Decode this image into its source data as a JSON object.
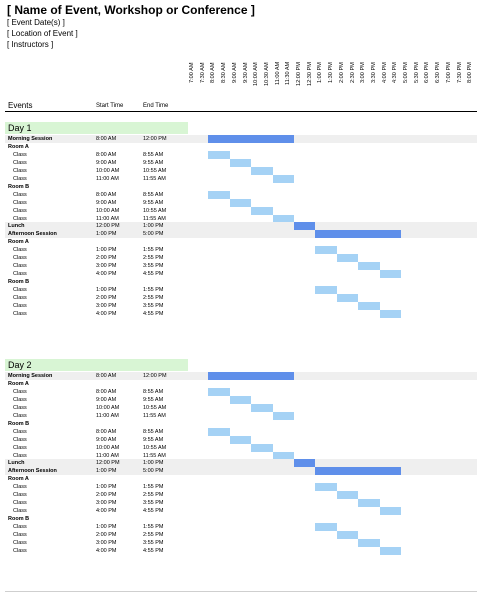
{
  "header": {
    "title": "[ Name of Event, Workshop or Conference ]",
    "dates": "[ Event Date(s) ]",
    "location": "[ Location of Event ]",
    "instructors": "[ Instructors ]"
  },
  "columns": {
    "events": "Events",
    "start": "Start Time",
    "end": "End Time"
  },
  "times": [
    "7:00 AM",
    "7:30 AM",
    "8:00 AM",
    "8:30 AM",
    "9:00 AM",
    "9:30 AM",
    "10:00 AM",
    "10:30 AM",
    "11:00 AM",
    "11:30 AM",
    "12:00 PM",
    "12:30 PM",
    "1:00 PM",
    "1:30 PM",
    "2:00 PM",
    "2:30 PM",
    "3:00 PM",
    "3:30 PM",
    "4:00 PM",
    "4:30 PM",
    "5:00 PM",
    "5:30 PM",
    "6:00 PM",
    "6:30 PM",
    "7:00 PM",
    "7:30 PM",
    "8:00 PM"
  ],
  "colors": {
    "class_bar": "#a5d2f5",
    "session_bar": "#5f8fea",
    "day_header": "#d8f5d4",
    "row_shade": "#efefef"
  },
  "days": [
    {
      "label": "Day 1",
      "rows": [
        {
          "kind": "sess",
          "name": "Morning Session",
          "start": "8:00 AM",
          "end": "12:00 PM",
          "s": 8,
          "e": 12
        },
        {
          "kind": "grp",
          "name": "Room A",
          "start": "",
          "end": ""
        },
        {
          "kind": "cls",
          "name": "Class",
          "start": "8:00 AM",
          "end": "8:55 AM",
          "s": 8,
          "e": 9
        },
        {
          "kind": "cls",
          "name": "Class",
          "start": "9:00 AM",
          "end": "9:55 AM",
          "s": 9,
          "e": 10
        },
        {
          "kind": "cls",
          "name": "Class",
          "start": "10:00 AM",
          "end": "10:55 AM",
          "s": 10,
          "e": 11
        },
        {
          "kind": "cls",
          "name": "Class",
          "start": "11:00 AM",
          "end": "11:55 AM",
          "s": 11,
          "e": 12
        },
        {
          "kind": "grp",
          "name": "Room B",
          "start": "",
          "end": ""
        },
        {
          "kind": "cls",
          "name": "Class",
          "start": "8:00 AM",
          "end": "8:55 AM",
          "s": 8,
          "e": 9
        },
        {
          "kind": "cls",
          "name": "Class",
          "start": "9:00 AM",
          "end": "9:55 AM",
          "s": 9,
          "e": 10
        },
        {
          "kind": "cls",
          "name": "Class",
          "start": "10:00 AM",
          "end": "10:55 AM",
          "s": 10,
          "e": 11
        },
        {
          "kind": "cls",
          "name": "Class",
          "start": "11:00 AM",
          "end": "11:55 AM",
          "s": 11,
          "e": 12
        },
        {
          "kind": "sess",
          "name": "Lunch",
          "start": "12:00 PM",
          "end": "1:00 PM",
          "s": 12,
          "e": 13
        },
        {
          "kind": "sess",
          "name": "Afternoon Session",
          "start": "1:00 PM",
          "end": "5:00 PM",
          "s": 13,
          "e": 17
        },
        {
          "kind": "grp",
          "name": "Room A",
          "start": "",
          "end": ""
        },
        {
          "kind": "cls",
          "name": "Class",
          "start": "1:00 PM",
          "end": "1:55 PM",
          "s": 13,
          "e": 14
        },
        {
          "kind": "cls",
          "name": "Class",
          "start": "2:00 PM",
          "end": "2:55 PM",
          "s": 14,
          "e": 15
        },
        {
          "kind": "cls",
          "name": "Class",
          "start": "3:00 PM",
          "end": "3:55 PM",
          "s": 15,
          "e": 16
        },
        {
          "kind": "cls",
          "name": "Class",
          "start": "4:00 PM",
          "end": "4:55 PM",
          "s": 16,
          "e": 17
        },
        {
          "kind": "grp",
          "name": "Room B",
          "start": "",
          "end": ""
        },
        {
          "kind": "cls",
          "name": "Class",
          "start": "1:00 PM",
          "end": "1:55 PM",
          "s": 13,
          "e": 14
        },
        {
          "kind": "cls",
          "name": "Class",
          "start": "2:00 PM",
          "end": "2:55 PM",
          "s": 14,
          "e": 15
        },
        {
          "kind": "cls",
          "name": "Class",
          "start": "3:00 PM",
          "end": "3:55 PM",
          "s": 15,
          "e": 16
        },
        {
          "kind": "cls",
          "name": "Class",
          "start": "4:00 PM",
          "end": "4:55 PM",
          "s": 16,
          "e": 17
        }
      ]
    },
    {
      "label": "Day 2",
      "rows": [
        {
          "kind": "sess",
          "name": "Morning Session",
          "start": "8:00 AM",
          "end": "12:00 PM",
          "s": 8,
          "e": 12
        },
        {
          "kind": "grp",
          "name": "Room A",
          "start": "",
          "end": ""
        },
        {
          "kind": "cls",
          "name": "Class",
          "start": "8:00 AM",
          "end": "8:55 AM",
          "s": 8,
          "e": 9
        },
        {
          "kind": "cls",
          "name": "Class",
          "start": "9:00 AM",
          "end": "9:55 AM",
          "s": 9,
          "e": 10
        },
        {
          "kind": "cls",
          "name": "Class",
          "start": "10:00 AM",
          "end": "10:55 AM",
          "s": 10,
          "e": 11
        },
        {
          "kind": "cls",
          "name": "Class",
          "start": "11:00 AM",
          "end": "11:55 AM",
          "s": 11,
          "e": 12
        },
        {
          "kind": "grp",
          "name": "Room B",
          "start": "",
          "end": ""
        },
        {
          "kind": "cls",
          "name": "Class",
          "start": "8:00 AM",
          "end": "8:55 AM",
          "s": 8,
          "e": 9
        },
        {
          "kind": "cls",
          "name": "Class",
          "start": "9:00 AM",
          "end": "9:55 AM",
          "s": 9,
          "e": 10
        },
        {
          "kind": "cls",
          "name": "Class",
          "start": "10:00 AM",
          "end": "10:55 AM",
          "s": 10,
          "e": 11
        },
        {
          "kind": "cls",
          "name": "Class",
          "start": "11:00 AM",
          "end": "11:55 AM",
          "s": 11,
          "e": 12
        },
        {
          "kind": "sess",
          "name": "Lunch",
          "start": "12:00 PM",
          "end": "1:00 PM",
          "s": 12,
          "e": 13
        },
        {
          "kind": "sess",
          "name": "Afternoon Session",
          "start": "1:00 PM",
          "end": "5:00 PM",
          "s": 13,
          "e": 17
        },
        {
          "kind": "grp",
          "name": "Room A",
          "start": "",
          "end": ""
        },
        {
          "kind": "cls",
          "name": "Class",
          "start": "1:00 PM",
          "end": "1:55 PM",
          "s": 13,
          "e": 14
        },
        {
          "kind": "cls",
          "name": "Class",
          "start": "2:00 PM",
          "end": "2:55 PM",
          "s": 14,
          "e": 15
        },
        {
          "kind": "cls",
          "name": "Class",
          "start": "3:00 PM",
          "end": "3:55 PM",
          "s": 15,
          "e": 16
        },
        {
          "kind": "cls",
          "name": "Class",
          "start": "4:00 PM",
          "end": "4:55 PM",
          "s": 16,
          "e": 17
        },
        {
          "kind": "grp",
          "name": "Room B",
          "start": "",
          "end": ""
        },
        {
          "kind": "cls",
          "name": "Class",
          "start": "1:00 PM",
          "end": "1:55 PM",
          "s": 13,
          "e": 14
        },
        {
          "kind": "cls",
          "name": "Class",
          "start": "2:00 PM",
          "end": "2:55 PM",
          "s": 14,
          "e": 15
        },
        {
          "kind": "cls",
          "name": "Class",
          "start": "3:00 PM",
          "end": "3:55 PM",
          "s": 15,
          "e": 16
        },
        {
          "kind": "cls",
          "name": "Class",
          "start": "4:00 PM",
          "end": "4:55 PM",
          "s": 16,
          "e": 17
        }
      ]
    }
  ]
}
